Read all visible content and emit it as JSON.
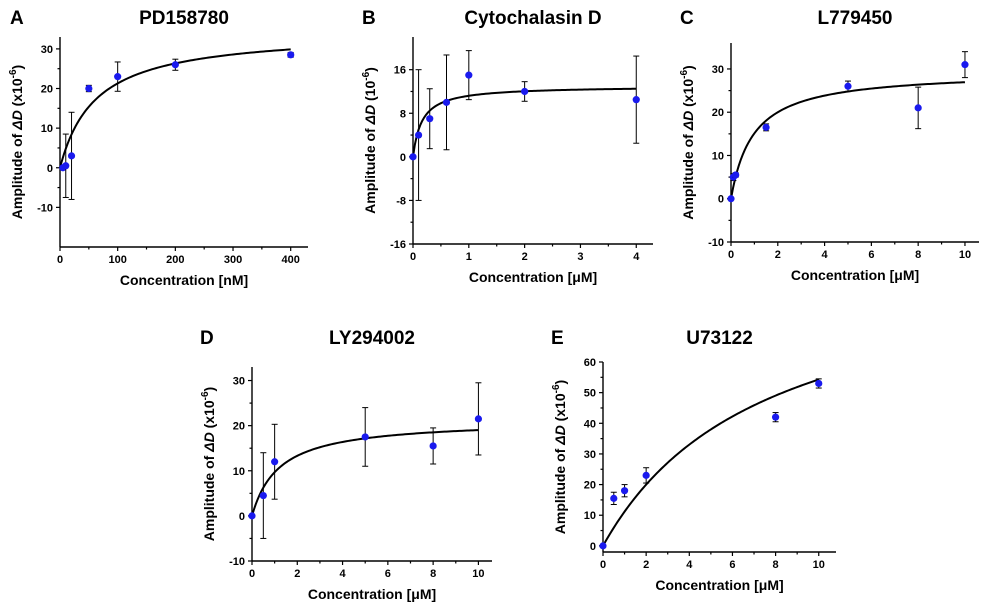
{
  "colors": {
    "point": "#1a1aee",
    "axis": "#000000",
    "fit": "#000000"
  },
  "chart_data": [
    {
      "letter": "A",
      "title": "PD158780",
      "type": "scatter",
      "xlabel": "Concentration [nM]",
      "ylabel_pre": "Amplitude of ",
      "ylabel_sym": "ΔD",
      "ylabel_unit": " (x10",
      "ylabel_exp": "-6",
      "ylabel_close": ")",
      "xlim": [
        0,
        430
      ],
      "ylim": [
        -20,
        33
      ],
      "xticks": [
        0,
        100,
        200,
        300,
        400
      ],
      "yticks": [
        -10,
        0,
        10,
        20,
        30
      ],
      "points": [
        {
          "x": 5,
          "y": 0,
          "err": 0
        },
        {
          "x": 10,
          "y": 0.5,
          "err": 8
        },
        {
          "x": 20,
          "y": 3,
          "err": 11
        },
        {
          "x": 50,
          "y": 20,
          "err": 0.8
        },
        {
          "x": 100,
          "y": 23,
          "err": 3.7
        },
        {
          "x": 200,
          "y": 26,
          "err": 1.4
        },
        {
          "x": 400,
          "y": 28.5,
          "err": 0.6
        }
      ],
      "fit": {
        "model": "hyperbolic",
        "ymax": 34.5,
        "k": 62
      }
    },
    {
      "letter": "B",
      "title": "Cytochalasin D",
      "type": "scatter",
      "xlabel": "Concentration [μM]",
      "ylabel_pre": "Amplitude of ",
      "ylabel_sym": "ΔD",
      "ylabel_unit": " (10",
      "ylabel_exp": "-6",
      "ylabel_close": ")",
      "xlim": [
        0,
        4.3
      ],
      "ylim": [
        -16,
        22
      ],
      "xticks": [
        0,
        1,
        2,
        3,
        4
      ],
      "yticks": [
        -16,
        -8,
        0,
        8,
        16
      ],
      "points": [
        {
          "x": 0,
          "y": 0,
          "err": 0
        },
        {
          "x": 0.1,
          "y": 4,
          "err": 12
        },
        {
          "x": 0.3,
          "y": 7,
          "err": 5.5
        },
        {
          "x": 0.6,
          "y": 10,
          "err": 8.7
        },
        {
          "x": 1,
          "y": 15,
          "err": 4.5
        },
        {
          "x": 2,
          "y": 12,
          "err": 1.8
        },
        {
          "x": 4,
          "y": 10.5,
          "err": 8
        }
      ],
      "fit": {
        "model": "hyperbolic",
        "ymax": 13,
        "k": 0.16
      }
    },
    {
      "letter": "C",
      "title": "L779450",
      "type": "scatter",
      "xlabel": "Concentration [μM]",
      "ylabel_pre": "Amplitude of ",
      "ylabel_sym": "ΔD",
      "ylabel_unit": " (x10",
      "ylabel_exp": "-6",
      "ylabel_close": ")",
      "xlim": [
        0,
        10.6
      ],
      "ylim": [
        -10,
        36
      ],
      "xticks": [
        0,
        2,
        4,
        6,
        8,
        10
      ],
      "yticks": [
        -10,
        0,
        10,
        20,
        30
      ],
      "points": [
        {
          "x": 0,
          "y": 0,
          "err": 0
        },
        {
          "x": 0.1,
          "y": 5,
          "err": 0.8
        },
        {
          "x": 0.2,
          "y": 5.5,
          "err": 0.5
        },
        {
          "x": 1.5,
          "y": 16.5,
          "err": 0.8
        },
        {
          "x": 5,
          "y": 26,
          "err": 1.2
        },
        {
          "x": 8,
          "y": 21,
          "err": 4.8
        },
        {
          "x": 10,
          "y": 31,
          "err": 3
        }
      ],
      "fit": {
        "model": "hyperbolic",
        "ymax": 29.5,
        "k": 0.95
      }
    },
    {
      "letter": "D",
      "title": "LY294002",
      "type": "scatter",
      "xlabel": "Concentration [μM]",
      "ylabel_pre": "Amplitude of ",
      "ylabel_sym": "ΔD",
      "ylabel_unit": " (x10",
      "ylabel_exp": "-6",
      "ylabel_close": ")",
      "xlim": [
        0,
        10.6
      ],
      "ylim": [
        -10,
        33
      ],
      "xticks": [
        0,
        2,
        4,
        6,
        8,
        10
      ],
      "yticks": [
        -10,
        0,
        10,
        20,
        30
      ],
      "points": [
        {
          "x": 0,
          "y": 0,
          "err": 0
        },
        {
          "x": 0.5,
          "y": 4.5,
          "err": 9.5
        },
        {
          "x": 1,
          "y": 12,
          "err": 8.3
        },
        {
          "x": 5,
          "y": 17.5,
          "err": 6.5
        },
        {
          "x": 8,
          "y": 15.5,
          "err": 4
        },
        {
          "x": 10,
          "y": 21.5,
          "err": 8
        }
      ],
      "fit": {
        "model": "hyperbolic",
        "ymax": 21.3,
        "k": 1.2
      }
    },
    {
      "letter": "E",
      "title": "U73122",
      "type": "scatter",
      "xlabel": "Concentration [μM]",
      "ylabel_pre": "Amplitude of ",
      "ylabel_sym": "ΔD",
      "ylabel_unit": " (x10",
      "ylabel_exp": "-6",
      "ylabel_close": ")",
      "xlim": [
        0,
        10.8
      ],
      "ylim": [
        -2,
        60
      ],
      "xticks": [
        0,
        2,
        4,
        6,
        8,
        10
      ],
      "yticks": [
        0,
        10,
        20,
        30,
        40,
        50,
        60
      ],
      "points": [
        {
          "x": 0,
          "y": 0,
          "err": 0
        },
        {
          "x": 0.5,
          "y": 15.5,
          "err": 2
        },
        {
          "x": 1,
          "y": 18,
          "err": 2
        },
        {
          "x": 2,
          "y": 23,
          "err": 2.5
        },
        {
          "x": 8,
          "y": 42,
          "err": 1.5
        },
        {
          "x": 10,
          "y": 53,
          "err": 1.5
        }
      ],
      "fit": {
        "model": "hyperbolic",
        "ymax": 95,
        "k": 7.5
      }
    }
  ]
}
